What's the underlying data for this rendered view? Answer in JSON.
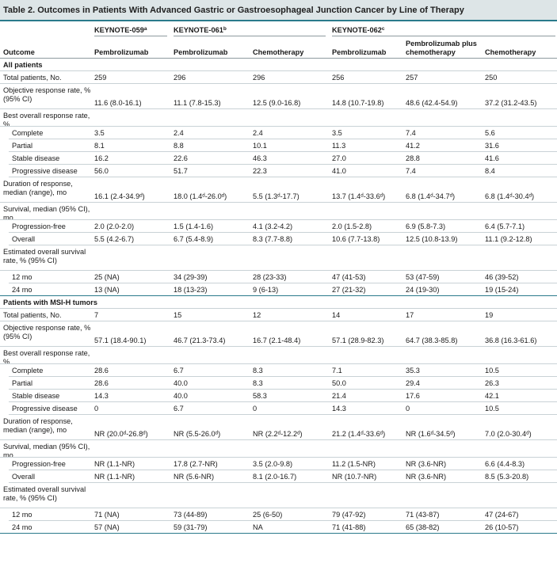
{
  "caption": "Table 2. Outcomes in Patients With Advanced Gastric or Gastroesophageal Junction Cancer by Line of Therapy",
  "header": {
    "outcome": "Outcome",
    "study_059": "KEYNOTE-059",
    "study_059_sup": "a",
    "study_061": "KEYNOTE-061",
    "study_061_sup": "b",
    "study_062": "KEYNOTE-062",
    "study_062_sup": "c",
    "columns": [
      "Pembrolizumab",
      "Pembrolizumab",
      "Chemotherapy",
      "Pembrolizumab",
      "Pembrolizumab plus chemotherapy",
      "Chemotherapy"
    ]
  },
  "sections": [
    {
      "title": "All patients",
      "rows": [
        {
          "label": "Total patients, No.",
          "indent": 0,
          "cells": [
            "259",
            "296",
            "296",
            "256",
            "257",
            "250"
          ]
        },
        {
          "label": "Objective response rate, % (95% CI)",
          "indent": 0,
          "cells": [
            "11.6 (8.0-16.1)",
            "11.1 (7.8-15.3)",
            "12.5 (9.0-16.8)",
            "14.8 (10.7-19.8)",
            "48.6 (42.4-54.9)",
            "37.2 (31.2-43.5)"
          ]
        },
        {
          "label": "Best overall response rate, %",
          "indent": 0,
          "cells": [
            "",
            "",
            "",
            "",
            "",
            ""
          ]
        },
        {
          "label": "Complete",
          "indent": 1,
          "cells": [
            "3.5",
            "2.4",
            "2.4",
            "3.5",
            "7.4",
            "5.6"
          ]
        },
        {
          "label": "Partial",
          "indent": 1,
          "cells": [
            "8.1",
            "8.8",
            "10.1",
            "11.3",
            "41.2",
            "31.6"
          ]
        },
        {
          "label": "Stable disease",
          "indent": 1,
          "cells": [
            "16.2",
            "22.6",
            "46.3",
            "27.0",
            "28.8",
            "41.6"
          ]
        },
        {
          "label": "Progressive disease",
          "indent": 1,
          "cells": [
            "56.0",
            "51.7",
            "22.3",
            "41.0",
            "7.4",
            "8.4"
          ]
        },
        {
          "label": "Duration of response, median (range), mo",
          "indent": 0,
          "cells": [
            "16.1 (2.4-34.9ᵈ)",
            "18.0 (1.4ᵈ-26.0ᵈ)",
            "5.5 (1.3ᵈ-17.7)",
            "13.7 (1.4ᵈ-33.6ᵈ)",
            "6.8 (1.4ᵈ-34.7ᵈ)",
            "6.8 (1.4ᵈ-30.4ᵈ)"
          ]
        },
        {
          "label": "Survival, median (95% CI), mo",
          "indent": 0,
          "cells": [
            "",
            "",
            "",
            "",
            "",
            ""
          ]
        },
        {
          "label": "Progression-free",
          "indent": 1,
          "cells": [
            "2.0 (2.0-2.0)",
            "1.5 (1.4-1.6)",
            "4.1 (3.2-4.2)",
            "2.0 (1.5-2.8)",
            "6.9 (5.8-7.3)",
            "6.4 (5.7-7.1)"
          ]
        },
        {
          "label": "Overall",
          "indent": 1,
          "cells": [
            "5.5 (4.2-6.7)",
            "6.7 (5.4-8.9)",
            "8.3 (7.7-8.8)",
            "10.6 (7.7-13.8)",
            "12.5 (10.8-13.9)",
            "11.1 (9.2-12.8)"
          ]
        },
        {
          "label": "Estimated overall survival rate, % (95% CI)",
          "indent": 0,
          "cells": [
            "",
            "",
            "",
            "",
            "",
            ""
          ]
        },
        {
          "label": "12 mo",
          "indent": 1,
          "cells": [
            "25 (NA)",
            "34 (29-39)",
            "28 (23-33)",
            "47 (41-53)",
            "53 (47-59)",
            "46 (39-52)"
          ]
        },
        {
          "label": "24 mo",
          "indent": 1,
          "cells": [
            "13 (NA)",
            "18 (13-23)",
            "9 (6-13)",
            "27 (21-32)",
            "24 (19-30)",
            "19 (15-24)"
          ]
        }
      ]
    },
    {
      "title": "Patients with MSI-H tumors",
      "rows": [
        {
          "label": "Total patients, No.",
          "indent": 0,
          "cells": [
            "7",
            "15",
            "12",
            "14",
            "17",
            "19"
          ]
        },
        {
          "label": "Objective response rate, % (95% CI)",
          "indent": 0,
          "cells": [
            "57.1 (18.4-90.1)",
            "46.7 (21.3-73.4)",
            "16.7 (2.1-48.4)",
            "57.1 (28.9-82.3)",
            "64.7 (38.3-85.8)",
            "36.8 (16.3-61.6)"
          ]
        },
        {
          "label": "Best overall response rate, %",
          "indent": 0,
          "cells": [
            "",
            "",
            "",
            "",
            "",
            ""
          ]
        },
        {
          "label": "Complete",
          "indent": 1,
          "cells": [
            "28.6",
            "6.7",
            "8.3",
            "7.1",
            "35.3",
            "10.5"
          ]
        },
        {
          "label": "Partial",
          "indent": 1,
          "cells": [
            "28.6",
            "40.0",
            "8.3",
            "50.0",
            "29.4",
            "26.3"
          ]
        },
        {
          "label": "Stable disease",
          "indent": 1,
          "cells": [
            "14.3",
            "40.0",
            "58.3",
            "21.4",
            "17.6",
            "42.1"
          ]
        },
        {
          "label": "Progressive disease",
          "indent": 1,
          "cells": [
            "0",
            "6.7",
            "0",
            "14.3",
            "0",
            "10.5"
          ]
        },
        {
          "label": "Duration of response, median (range), mo",
          "indent": 0,
          "cells": [
            "NR (20.0ᵈ-26.8ᵈ)",
            "NR (5.5-26.0ᵈ)",
            "NR (2.2ᵈ-12.2ᵈ)",
            "21.2 (1.4ᵈ-33.6ᵈ)",
            "NR (1.6ᵈ-34.5ᵈ)",
            "7.0 (2.0-30.4ᵈ)"
          ]
        },
        {
          "label": "Survival, median (95% CI), mo",
          "indent": 0,
          "cells": [
            "",
            "",
            "",
            "",
            "",
            ""
          ]
        },
        {
          "label": "Progression-free",
          "indent": 1,
          "cells": [
            "NR (1.1-NR)",
            "17.8 (2.7-NR)",
            "3.5 (2.0-9.8)",
            "11.2 (1.5-NR)",
            "NR (3.6-NR)",
            "6.6 (4.4-8.3)"
          ]
        },
        {
          "label": "Overall",
          "indent": 1,
          "cells": [
            "NR (1.1-NR)",
            "NR (5.6-NR)",
            "8.1 (2.0-16.7)",
            "NR (10.7-NR)",
            "NR (3.6-NR)",
            "8.5 (5.3-20.8)"
          ]
        },
        {
          "label": "Estimated overall survival rate, % (95% CI)",
          "indent": 0,
          "cells": [
            "",
            "",
            "",
            "",
            "",
            ""
          ]
        },
        {
          "label": "12 mo",
          "indent": 1,
          "cells": [
            "71 (NA)",
            "73 (44-89)",
            "25 (6-50)",
            "79 (47-92)",
            "71 (43-87)",
            "47 (24-67)"
          ]
        },
        {
          "label": "24 mo",
          "indent": 1,
          "cells": [
            "57 (NA)",
            "59 (31-79)",
            "NA",
            "71 (41-88)",
            "65 (38-82)",
            "26 (10-57)"
          ]
        }
      ]
    }
  ]
}
